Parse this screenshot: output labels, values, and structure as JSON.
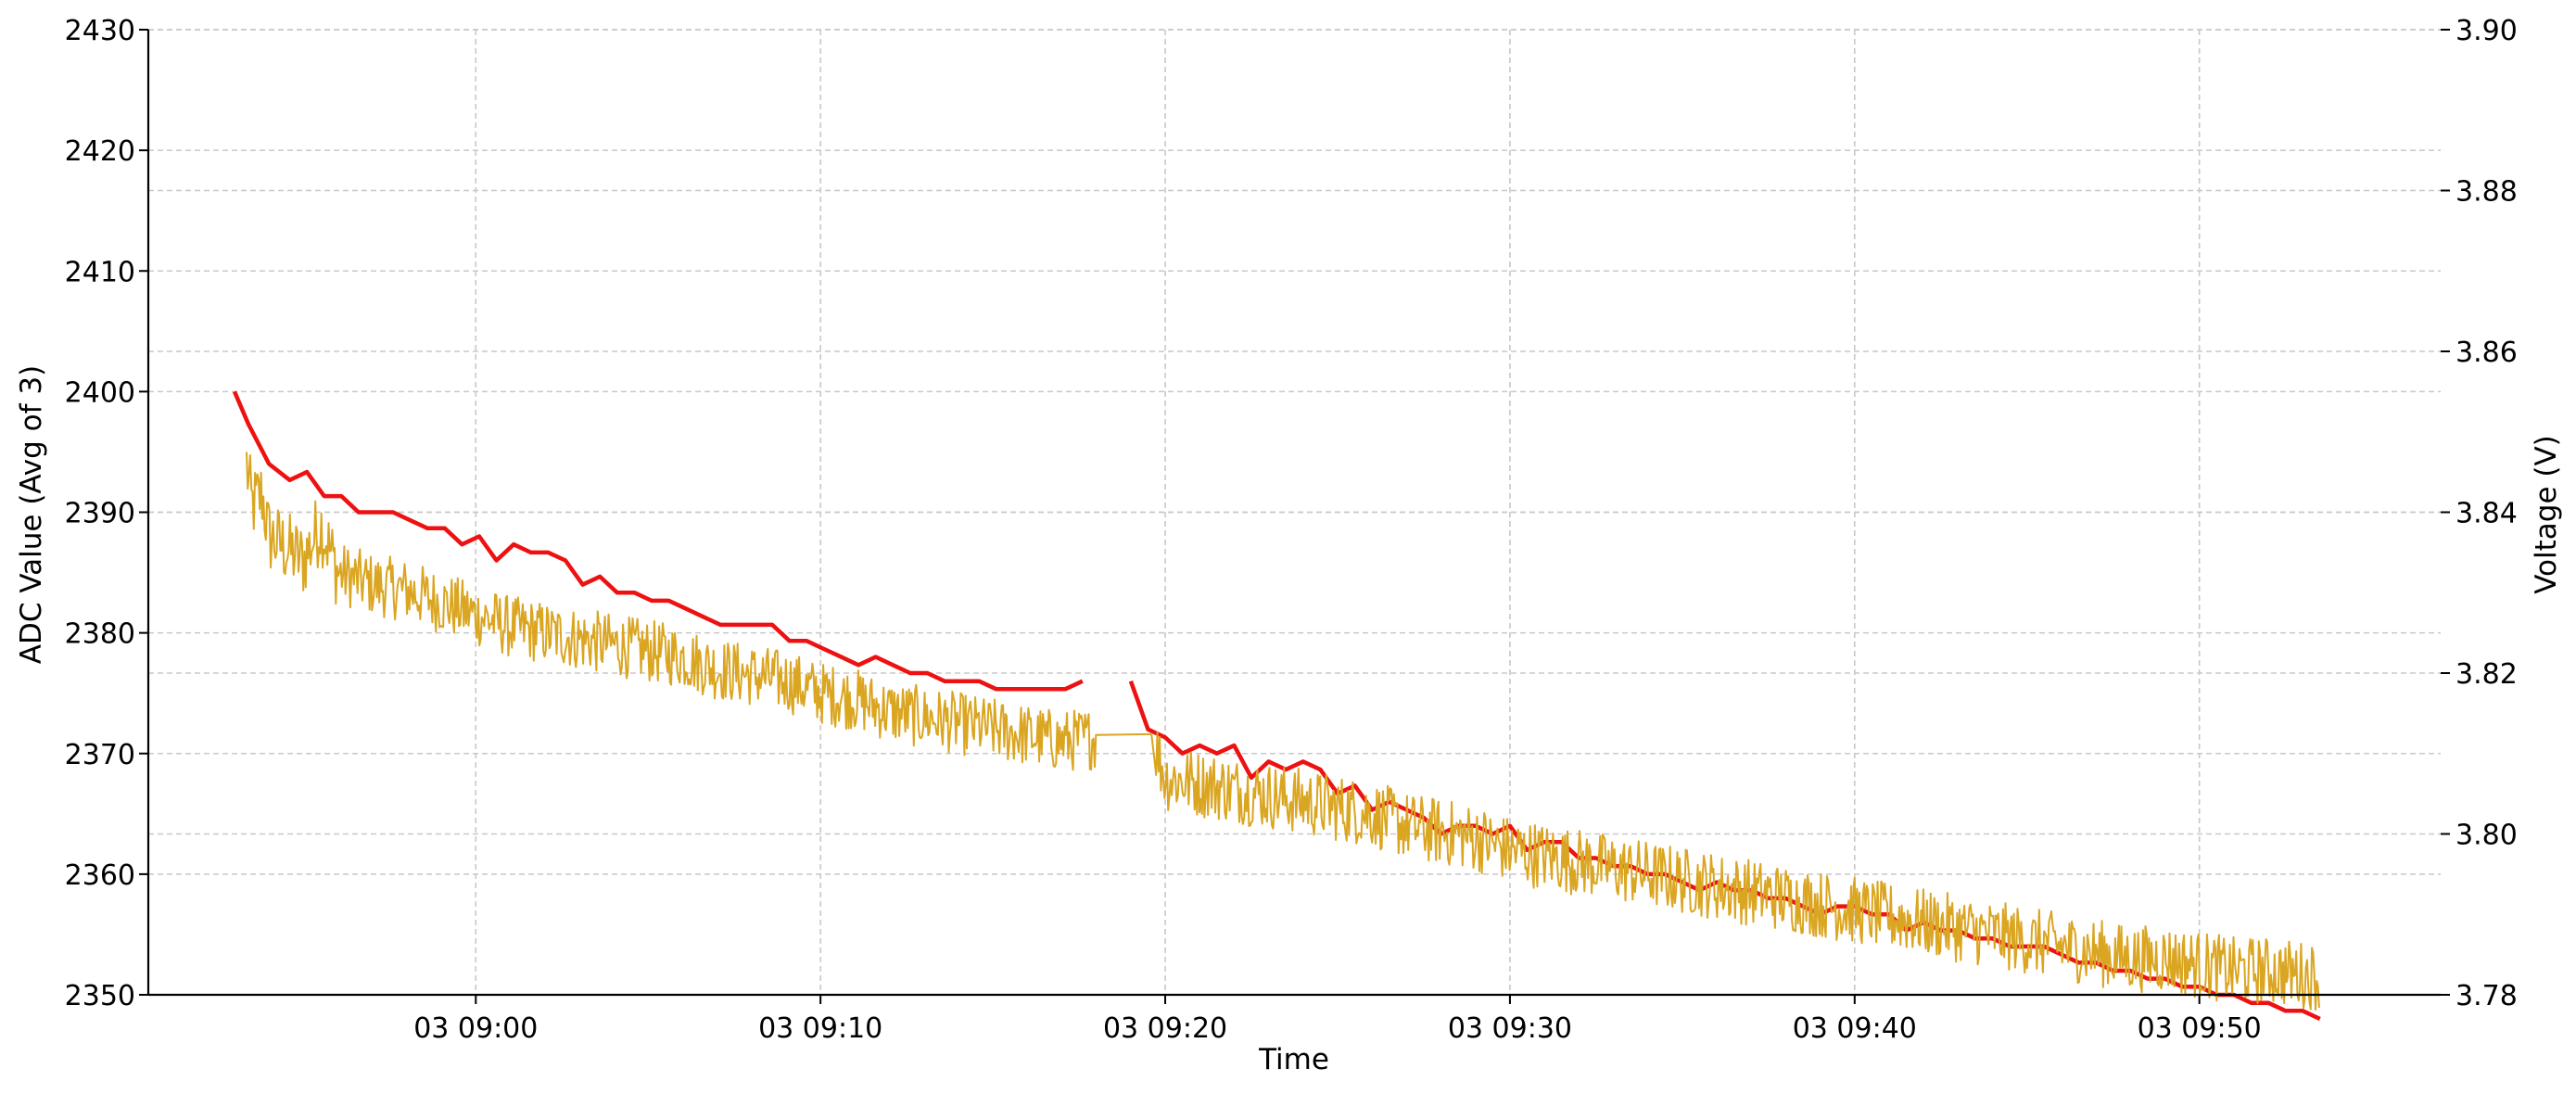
{
  "chart_data": {
    "type": "line",
    "title": "",
    "xlabel": "Time",
    "ylabel_left": "ADC Value (Avg of 3)",
    "ylabel_right": "Voltage (V)",
    "x_unit": "minutes after 03 08:50",
    "x_range": [
      "03 08:50:30",
      "03 09:57:00"
    ],
    "x_ticks": [
      "03 09:00",
      "03 09:10",
      "03 09:20",
      "03 09:30",
      "03 09:40",
      "03 09:50"
    ],
    "ylim_left": [
      2350,
      2430
    ],
    "ylim_right": [
      3.78,
      3.9
    ],
    "yticks_left": [
      "2350",
      "2360",
      "2370",
      "2380",
      "2390",
      "2400",
      "2410",
      "2420",
      "2430"
    ],
    "yticks_right": [
      "3.78",
      "3.80",
      "3.82",
      "3.84",
      "3.86",
      "3.88",
      "3.90"
    ],
    "grid": true,
    "grid_style": "dashed",
    "legend": "none",
    "series": [
      {
        "axis": "right",
        "color": "#ee1111",
        "segments": [
          [
            [
              3.0,
              3.855
            ],
            [
              3.4,
              3.851
            ],
            [
              4.0,
              3.846
            ],
            [
              4.6,
              3.844
            ],
            [
              5.1,
              3.845
            ],
            [
              5.6,
              3.842
            ],
            [
              6.1,
              3.842
            ],
            [
              6.6,
              3.84
            ],
            [
              7.1,
              3.84
            ],
            [
              7.6,
              3.84
            ],
            [
              8.1,
              3.839
            ],
            [
              8.6,
              3.838
            ],
            [
              9.1,
              3.838
            ],
            [
              9.6,
              3.836
            ],
            [
              10.1,
              3.837
            ],
            [
              10.6,
              3.834
            ],
            [
              11.1,
              3.836
            ],
            [
              11.6,
              3.835
            ],
            [
              12.1,
              3.835
            ],
            [
              12.6,
              3.834
            ],
            [
              13.1,
              3.831
            ],
            [
              13.6,
              3.832
            ],
            [
              14.1,
              3.83
            ],
            [
              14.6,
              3.83
            ],
            [
              15.1,
              3.829
            ],
            [
              15.6,
              3.829
            ],
            [
              16.1,
              3.828
            ],
            [
              16.6,
              3.827
            ],
            [
              17.1,
              3.826
            ],
            [
              17.6,
              3.826
            ],
            [
              18.1,
              3.826
            ],
            [
              18.6,
              3.826
            ],
            [
              19.1,
              3.824
            ],
            [
              19.6,
              3.824
            ],
            [
              20.1,
              3.823
            ],
            [
              20.6,
              3.822
            ],
            [
              21.1,
              3.821
            ],
            [
              21.6,
              3.822
            ],
            [
              22.1,
              3.821
            ],
            [
              22.6,
              3.82
            ],
            [
              23.1,
              3.82
            ],
            [
              23.6,
              3.819
            ],
            [
              24.1,
              3.819
            ],
            [
              24.6,
              3.819
            ],
            [
              25.1,
              3.818
            ],
            [
              25.6,
              3.818
            ],
            [
              26.1,
              3.818
            ],
            [
              26.6,
              3.818
            ],
            [
              27.1,
              3.818
            ],
            [
              27.6,
              3.819
            ]
          ],
          [
            [
              29.0,
              3.819
            ],
            [
              29.5,
              3.813
            ],
            [
              30.0,
              3.812
            ],
            [
              30.5,
              3.81
            ],
            [
              31.0,
              3.811
            ],
            [
              31.5,
              3.81
            ],
            [
              32.0,
              3.811
            ],
            [
              32.5,
              3.807
            ],
            [
              33.0,
              3.809
            ],
            [
              33.5,
              3.808
            ],
            [
              34.0,
              3.809
            ],
            [
              34.5,
              3.808
            ],
            [
              35.0,
              3.805
            ],
            [
              35.5,
              3.806
            ],
            [
              36.0,
              3.803
            ],
            [
              36.5,
              3.804
            ],
            [
              37.0,
              3.803
            ],
            [
              37.5,
              3.802
            ],
            [
              38.0,
              3.8
            ],
            [
              38.5,
              3.801
            ],
            [
              39.0,
              3.801
            ],
            [
              39.5,
              3.8
            ],
            [
              40.0,
              3.801
            ],
            [
              40.5,
              3.798
            ],
            [
              41.0,
              3.799
            ],
            [
              41.5,
              3.799
            ],
            [
              42.0,
              3.797
            ],
            [
              42.5,
              3.797
            ],
            [
              43.0,
              3.796
            ],
            [
              43.5,
              3.796
            ],
            [
              44.0,
              3.795
            ],
            [
              44.5,
              3.795
            ],
            [
              45.0,
              3.794
            ],
            [
              45.5,
              3.793
            ],
            [
              46.0,
              3.794
            ],
            [
              46.5,
              3.793
            ],
            [
              47.0,
              3.793
            ],
            [
              47.5,
              3.792
            ],
            [
              48.0,
              3.792
            ],
            [
              48.5,
              3.791
            ],
            [
              49.0,
              3.79
            ],
            [
              49.5,
              3.791
            ],
            [
              50.0,
              3.791
            ],
            [
              50.5,
              3.79
            ],
            [
              51.0,
              3.79
            ],
            [
              51.5,
              3.788
            ],
            [
              52.0,
              3.789
            ],
            [
              52.5,
              3.788
            ],
            [
              53.0,
              3.788
            ],
            [
              53.5,
              3.787
            ],
            [
              54.0,
              3.787
            ],
            [
              54.5,
              3.786
            ],
            [
              55.0,
              3.786
            ],
            [
              55.5,
              3.786
            ],
            [
              56.0,
              3.785
            ],
            [
              56.5,
              3.784
            ],
            [
              57.0,
              3.784
            ],
            [
              57.5,
              3.783
            ],
            [
              58.0,
              3.783
            ],
            [
              58.5,
              3.782
            ],
            [
              59.0,
              3.782
            ],
            [
              59.5,
              3.781
            ],
            [
              60.0,
              3.781
            ],
            [
              60.5,
              3.78
            ],
            [
              61.0,
              3.78
            ],
            [
              61.5,
              3.779
            ],
            [
              62.0,
              3.779
            ],
            [
              62.5,
              3.778
            ],
            [
              63.0,
              3.778
            ],
            [
              63.5,
              3.777
            ]
          ]
        ]
      },
      {
        "axis": "left",
        "color": "#daa520",
        "segments": [
          [
            [
              3.35,
              2394.0
            ],
            [
              3.5,
              2390.5
            ],
            [
              3.8,
              2391.5
            ],
            [
              4.0,
              2388.0
            ],
            [
              4.5,
              2387.0
            ],
            [
              5.0,
              2386.0
            ],
            [
              5.5,
              2389.0
            ],
            [
              6.0,
              2385.0
            ],
            [
              7.0,
              2384.0
            ],
            [
              8.0,
              2383.5
            ],
            [
              9.0,
              2382.5
            ],
            [
              10.0,
              2381.5
            ],
            [
              11.0,
              2380.5
            ],
            [
              12.0,
              2380.0
            ],
            [
              13.0,
              2379.5
            ],
            [
              14.0,
              2379.0
            ],
            [
              15.0,
              2378.5
            ],
            [
              16.0,
              2378.0
            ],
            [
              17.0,
              2377.0
            ],
            [
              18.0,
              2376.5
            ],
            [
              19.0,
              2376.0
            ],
            [
              20.0,
              2375.0
            ],
            [
              21.0,
              2374.5
            ],
            [
              22.0,
              2373.5
            ],
            [
              23.0,
              2373.0
            ],
            [
              24.0,
              2372.5
            ],
            [
              25.0,
              2372.0
            ],
            [
              26.0,
              2371.5
            ],
            [
              27.0,
              2371.0
            ],
            [
              28.0,
              2371.3
            ],
            [
              29.6,
              2371.6
            ]
          ],
          [
            [
              29.6,
              2371.6
            ],
            [
              30.0,
              2368.0
            ],
            [
              31.0,
              2367.5
            ],
            [
              32.0,
              2367.0
            ],
            [
              33.0,
              2366.5
            ],
            [
              34.0,
              2366.0
            ],
            [
              35.0,
              2365.5
            ],
            [
              36.0,
              2365.0
            ],
            [
              37.0,
              2364.0
            ],
            [
              38.0,
              2363.5
            ],
            [
              39.0,
              2363.0
            ],
            [
              40.0,
              2362.0
            ],
            [
              41.0,
              2361.5
            ],
            [
              42.0,
              2361.0
            ],
            [
              43.0,
              2360.5
            ],
            [
              44.0,
              2360.0
            ],
            [
              45.0,
              2359.5
            ],
            [
              46.0,
              2359.0
            ],
            [
              47.0,
              2358.5
            ],
            [
              48.0,
              2358.0
            ],
            [
              49.0,
              2357.5
            ],
            [
              50.0,
              2357.0
            ],
            [
              51.0,
              2356.5
            ],
            [
              52.0,
              2356.0
            ],
            [
              53.0,
              2355.5
            ],
            [
              54.0,
              2355.0
            ],
            [
              55.0,
              2354.5
            ],
            [
              56.0,
              2354.0
            ],
            [
              57.0,
              2353.5
            ],
            [
              58.0,
              2353.0
            ],
            [
              59.0,
              2353.0
            ],
            [
              60.0,
              2352.5
            ],
            [
              61.0,
              2352.0
            ],
            [
              62.0,
              2352.0
            ],
            [
              63.5,
              2351.5
            ]
          ]
        ]
      }
    ]
  }
}
